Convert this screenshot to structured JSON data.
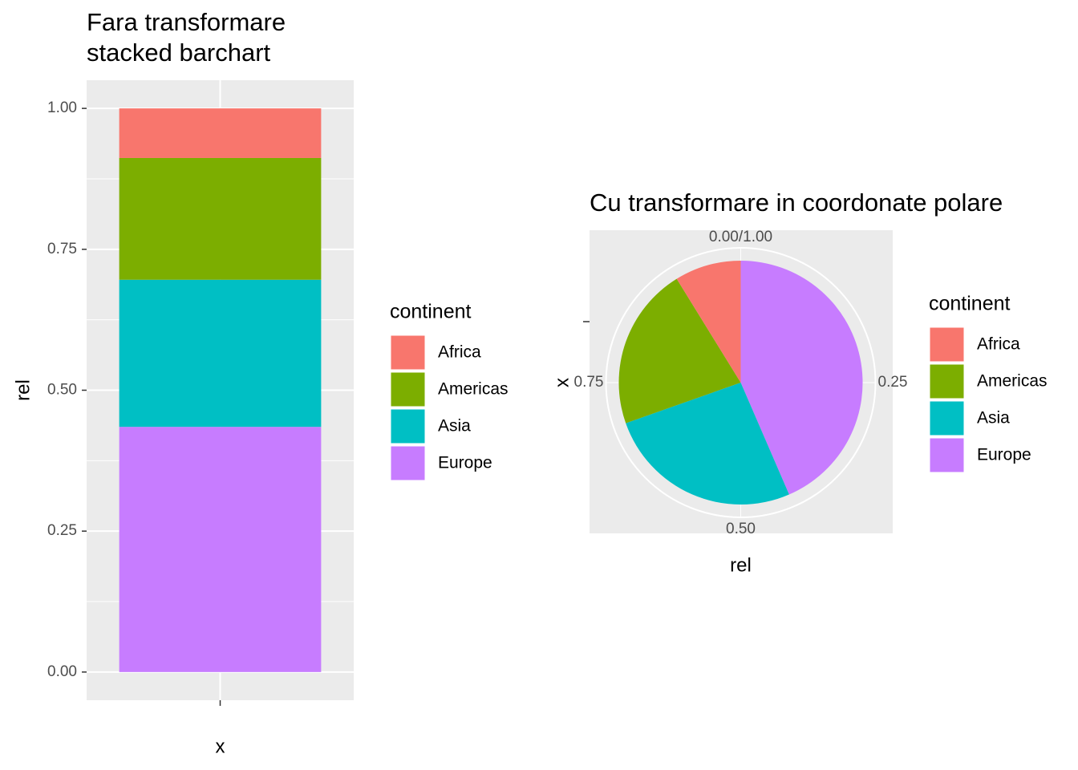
{
  "chart_data": [
    {
      "type": "bar",
      "stacked": true,
      "title": [
        "Fara transformare",
        "stacked barchart"
      ],
      "x_label": "x",
      "y_label": "rel",
      "categories": [
        null
      ],
      "series": [
        {
          "name": "Africa",
          "color": "#F8766D",
          "values": [
            0.088
          ]
        },
        {
          "name": "Americas",
          "color": "#7CAE00",
          "values": [
            0.216
          ]
        },
        {
          "name": "Asia",
          "color": "#00BFC4",
          "values": [
            0.261
          ]
        },
        {
          "name": "Europe",
          "color": "#C77CFF",
          "values": [
            0.435
          ]
        }
      ],
      "legend_title": "continent",
      "legend": "right",
      "grid": true,
      "ylim": [
        -0.05,
        1.05
      ],
      "yticks": [
        {
          "value": 0,
          "label": "0.00"
        },
        {
          "value": 0.25,
          "label": "0.25"
        },
        {
          "value": 0.5,
          "label": "0.50"
        },
        {
          "value": 0.75,
          "label": "0.75"
        },
        {
          "value": 1,
          "label": "1.00"
        }
      ]
    },
    {
      "type": "pie",
      "title": "Cu transformare in coordonate polare",
      "x_label": "rel",
      "y_label": "x",
      "categories": [
        null
      ],
      "series": [
        {
          "name": "Africa",
          "color": "#F8766D",
          "values": [
            0.088
          ]
        },
        {
          "name": "Americas",
          "color": "#7CAE00",
          "values": [
            0.216
          ]
        },
        {
          "name": "Asia",
          "color": "#00BFC4",
          "values": [
            0.261
          ]
        },
        {
          "name": "Europe",
          "color": "#C77CFF",
          "values": [
            0.435
          ]
        }
      ],
      "legend_title": "continent",
      "legend": "right",
      "theta_ticks": [
        {
          "value": 0,
          "label": "0.00/1.00"
        },
        {
          "value": 0.25,
          "label": "0.25"
        },
        {
          "value": 0.5,
          "label": "0.50"
        },
        {
          "value": 0.75,
          "label": "0.75"
        }
      ]
    }
  ]
}
